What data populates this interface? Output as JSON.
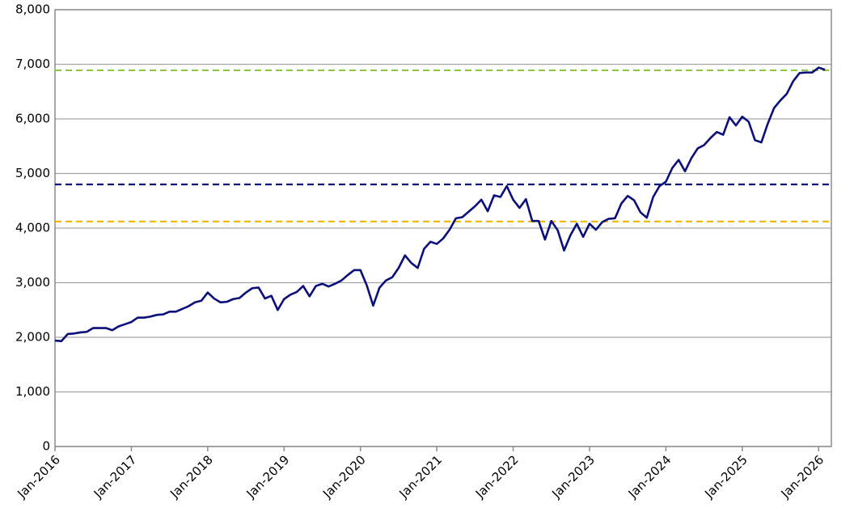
{
  "chart_data": {
    "type": "line",
    "x": [
      "2016-01",
      "2016-02",
      "2016-03",
      "2016-04",
      "2016-05",
      "2016-06",
      "2016-07",
      "2016-08",
      "2016-09",
      "2016-10",
      "2016-11",
      "2016-12",
      "2017-01",
      "2017-02",
      "2017-03",
      "2017-04",
      "2017-05",
      "2017-06",
      "2017-07",
      "2017-08",
      "2017-09",
      "2017-10",
      "2017-11",
      "2017-12",
      "2018-01",
      "2018-02",
      "2018-03",
      "2018-04",
      "2018-05",
      "2018-06",
      "2018-07",
      "2018-08",
      "2018-09",
      "2018-10",
      "2018-11",
      "2018-12",
      "2019-01",
      "2019-02",
      "2019-03",
      "2019-04",
      "2019-05",
      "2019-06",
      "2019-07",
      "2019-08",
      "2019-09",
      "2019-10",
      "2019-11",
      "2019-12",
      "2020-01",
      "2020-02",
      "2020-03",
      "2020-04",
      "2020-05",
      "2020-06",
      "2020-07",
      "2020-08",
      "2020-09",
      "2020-10",
      "2020-11",
      "2020-12",
      "2021-01",
      "2021-02",
      "2021-03",
      "2021-04",
      "2021-05",
      "2021-06",
      "2021-07",
      "2021-08",
      "2021-09",
      "2021-10",
      "2021-11",
      "2021-12",
      "2022-01",
      "2022-02",
      "2022-03",
      "2022-04",
      "2022-05",
      "2022-06",
      "2022-07",
      "2022-08",
      "2022-09",
      "2022-10",
      "2022-11",
      "2022-12",
      "2023-01",
      "2023-02",
      "2023-03",
      "2023-04",
      "2023-05",
      "2023-06",
      "2023-07",
      "2023-08",
      "2023-09",
      "2023-10",
      "2023-11",
      "2023-12",
      "2024-01",
      "2024-02",
      "2024-03",
      "2024-04",
      "2024-05",
      "2024-06",
      "2024-07",
      "2024-08",
      "2024-09",
      "2024-10",
      "2024-11",
      "2024-12",
      "2025-01",
      "2025-02",
      "2025-03",
      "2025-04",
      "2025-05",
      "2025-06",
      "2025-07",
      "2025-08",
      "2025-09",
      "2025-10",
      "2025-11",
      "2025-12",
      "2026-01",
      "2026-02"
    ],
    "series": [
      {
        "color": "#0a0f7a",
        "values": [
          1940,
          1930,
          2060,
          2070,
          2090,
          2100,
          2170,
          2170,
          2170,
          2130,
          2200,
          2240,
          2280,
          2360,
          2360,
          2380,
          2410,
          2420,
          2470,
          2470,
          2520,
          2570,
          2640,
          2670,
          2820,
          2710,
          2640,
          2650,
          2700,
          2720,
          2820,
          2900,
          2910,
          2710,
          2760,
          2500,
          2700,
          2780,
          2830,
          2940,
          2750,
          2940,
          2980,
          2930,
          2980,
          3040,
          3140,
          3230,
          3230,
          2950,
          2580,
          2910,
          3040,
          3100,
          3270,
          3500,
          3360,
          3270,
          3620,
          3750,
          3710,
          3810,
          3970,
          4180,
          4200,
          4300,
          4400,
          4520,
          4310,
          4600,
          4570,
          4770,
          4520,
          4370,
          4530,
          4130,
          4130,
          3790,
          4130,
          3960,
          3590,
          3870,
          4080,
          3840,
          4080,
          3970,
          4110,
          4170,
          4180,
          4450,
          4590,
          4510,
          4290,
          4190,
          4570,
          4770,
          4850,
          5100,
          5250,
          5040,
          5280,
          5460,
          5520,
          5650,
          5760,
          5710,
          6030,
          5880,
          6040,
          5950,
          5610,
          5570,
          5910,
          6200,
          6340,
          6460,
          6690,
          6840,
          6850,
          6850,
          6940,
          6900
        ]
      }
    ],
    "hlines": [
      {
        "value": 6890,
        "color": "#8dc63f"
      },
      {
        "value": 4800,
        "color": "#0a0f7a"
      },
      {
        "value": 4120,
        "color": "#f5b800"
      }
    ],
    "xlim": [
      "2016-01",
      "2026-03"
    ],
    "xticks": [
      {
        "value": "2016-01",
        "label": "Jan-2016"
      },
      {
        "value": "2017-01",
        "label": "Jan-2017"
      },
      {
        "value": "2018-01",
        "label": "Jan-2018"
      },
      {
        "value": "2019-01",
        "label": "Jan-2019"
      },
      {
        "value": "2020-01",
        "label": "Jan-2020"
      },
      {
        "value": "2021-01",
        "label": "Jan-2021"
      },
      {
        "value": "2022-01",
        "label": "Jan-2022"
      },
      {
        "value": "2023-01",
        "label": "Jan-2023"
      },
      {
        "value": "2024-01",
        "label": "Jan-2024"
      },
      {
        "value": "2025-01",
        "label": "Jan-2025"
      },
      {
        "value": "2026-01",
        "label": "Jan-2026"
      }
    ],
    "ylim": [
      0,
      8000
    ],
    "yticks": [
      0,
      {
        "value": 1000,
        "label": "1,000"
      },
      {
        "value": 2000,
        "label": "2,000"
      },
      {
        "value": 3000,
        "label": "3,000"
      },
      {
        "value": 4000,
        "label": "4,000"
      },
      {
        "value": 5000,
        "label": "5,000"
      },
      {
        "value": 6000,
        "label": "6,000"
      },
      {
        "value": 7000,
        "label": "7,000"
      },
      {
        "value": 8000,
        "label": "8,000"
      }
    ],
    "grid": true
  }
}
